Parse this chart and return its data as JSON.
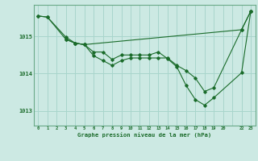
{
  "background_color": "#cce9e3",
  "grid_color": "#a8d5cc",
  "line_color": "#1a6b2a",
  "title": "Graphe pression niveau de la mer (hPa)",
  "xlim": [
    -0.5,
    23.5
  ],
  "ylim": [
    1012.6,
    1015.85
  ],
  "yticks": [
    1013,
    1014,
    1015
  ],
  "xtick_labels": [
    "0",
    "1",
    "2",
    "3",
    "4",
    "5",
    "6",
    "7",
    "8",
    "9",
    "10",
    "11",
    "12",
    "13",
    "14",
    "15",
    "16",
    "17",
    "18",
    "19",
    "20",
    "",
    "22",
    "23"
  ],
  "series": [
    {
      "x": [
        0,
        1,
        3,
        4,
        5,
        22,
        23
      ],
      "y": [
        1015.55,
        1015.52,
        1014.98,
        1014.82,
        1014.78,
        1015.18,
        1015.68
      ]
    },
    {
      "x": [
        0,
        1,
        3,
        4,
        5,
        6,
        7,
        8,
        9,
        10,
        11,
        12,
        13,
        14,
        15,
        16,
        17,
        18,
        19,
        22,
        23
      ],
      "y": [
        1015.55,
        1015.52,
        1014.92,
        1014.82,
        1014.78,
        1014.58,
        1014.58,
        1014.38,
        1014.5,
        1014.5,
        1014.5,
        1014.5,
        1014.58,
        1014.4,
        1014.18,
        1013.68,
        1013.3,
        1013.15,
        1013.35,
        1014.02,
        1015.68
      ]
    },
    {
      "x": [
        3,
        4,
        5,
        6,
        7,
        8,
        9,
        10,
        11,
        12,
        13,
        14,
        15,
        16,
        17,
        18,
        19,
        22,
        23
      ],
      "y": [
        1014.92,
        1014.82,
        1014.78,
        1014.48,
        1014.35,
        1014.22,
        1014.35,
        1014.42,
        1014.42,
        1014.42,
        1014.42,
        1014.42,
        1014.22,
        1014.08,
        1013.88,
        1013.52,
        1013.62,
        1015.18,
        1015.68
      ]
    }
  ]
}
